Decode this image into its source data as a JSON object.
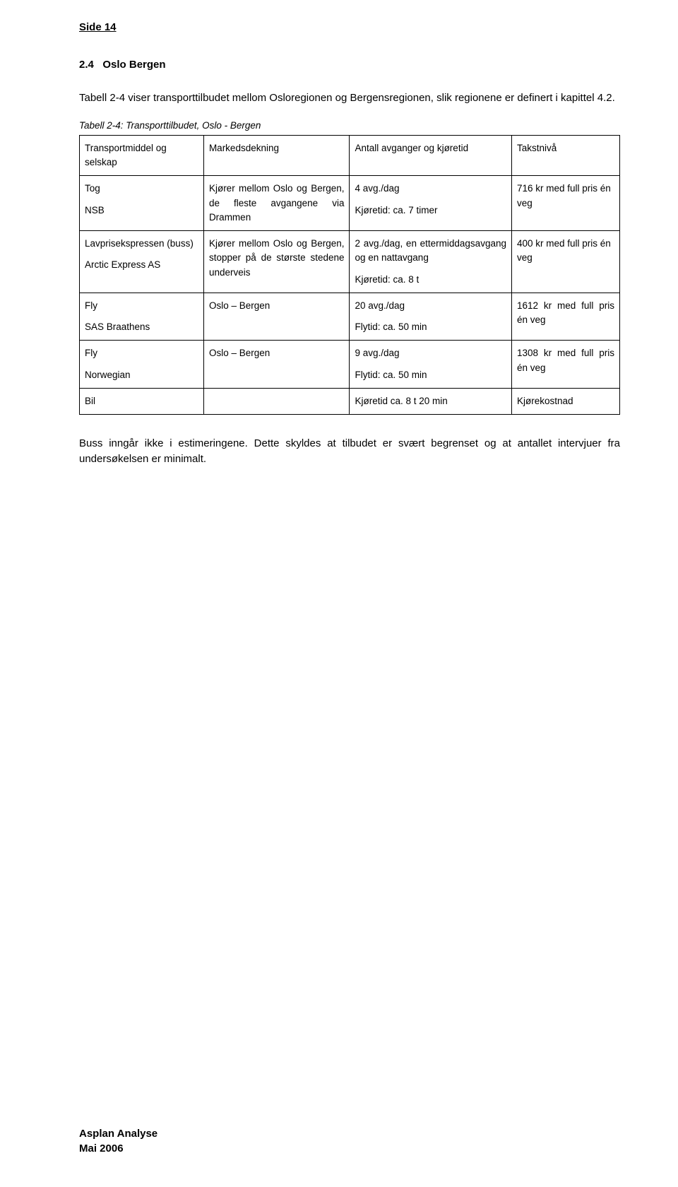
{
  "pageHeader": "Side 14",
  "section": {
    "number": "2.4",
    "title": "Oslo Bergen"
  },
  "introPara": "Tabell 2-4 viser transporttilbudet mellom Osloregionen og Bergensregionen, slik regionene er definert i kapittel 4.2.",
  "tableCaption": "Tabell 2-4: Transporttilbudet, Oslo - Bergen",
  "table": {
    "headers": {
      "col1": "Transportmiddel og selskap",
      "col2": "Markedsdekning",
      "col3": "Antall avganger og kjøretid",
      "col4": "Takstnivå"
    },
    "rows": [
      {
        "col1a": "Tog",
        "col1b": "NSB",
        "col2": "Kjører mellom Oslo og Bergen, de fleste avgangene via Drammen",
        "col3a": "4 avg./dag",
        "col3b": "Kjøretid: ca. 7 timer",
        "col4": "716 kr med full pris én veg"
      },
      {
        "col1a": "Lavprisekspressen (buss)",
        "col1b": "Arctic Express AS",
        "col2": "Kjører mellom Oslo og Bergen, stopper på de største stedene underveis",
        "col3a": "2 avg./dag, en ettermiddagsavgang og en nattavgang",
        "col3b": "Kjøretid: ca. 8 t",
        "col4": "400 kr med full pris én veg"
      },
      {
        "col1a": "Fly",
        "col1b": "SAS Braathens",
        "col2": "Oslo – Bergen",
        "col3a": "20 avg./dag",
        "col3b": "Flytid: ca. 50 min",
        "col4": "1612 kr med full pris én veg"
      },
      {
        "col1a": "Fly",
        "col1b": "Norwegian",
        "col2": "Oslo – Bergen",
        "col3a": "9 avg./dag",
        "col3b": "Flytid: ca. 50 min",
        "col4": "1308 kr med full pris én veg"
      },
      {
        "col1a": "Bil",
        "col1b": "",
        "col2": "",
        "col3a": "Kjøretid ca. 8 t 20 min",
        "col3b": "",
        "col4": "Kjørekostnad"
      }
    ]
  },
  "closingPara": "Buss inngår ikke i estimeringene. Dette skyldes at tilbudet er svært begrenset og at antallet intervjuer fra undersøkelsen er minimalt.",
  "footer": {
    "line1": "Asplan Analyse",
    "line2": "Mai 2006"
  },
  "styling": {
    "backgroundColor": "#ffffff",
    "textColor": "#000000",
    "borderColor": "#000000",
    "fontFamily": "Verdana",
    "bodyFontSize": 15,
    "tableFontSize": 13.5,
    "captionFontSize": 13.5,
    "pageWidth": 960,
    "pageHeight": 1680
  }
}
